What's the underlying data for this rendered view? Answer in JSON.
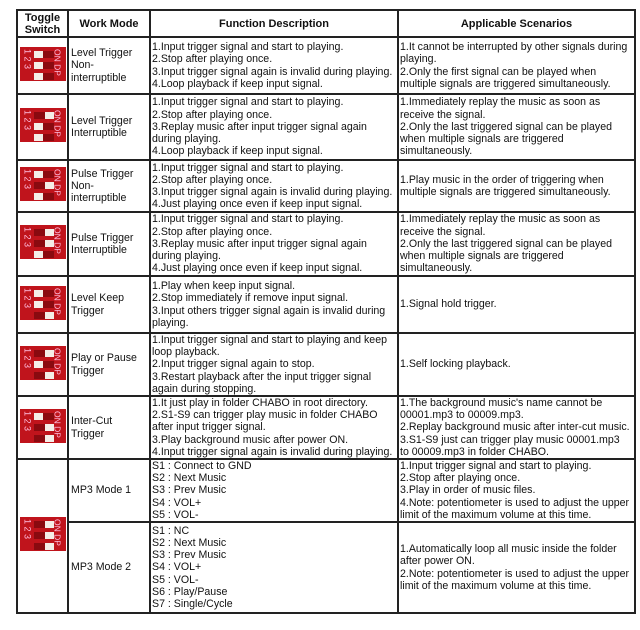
{
  "headers": [
    "Toggle Switch",
    "Work Mode",
    "Function Description",
    "Applicable Scenarios"
  ],
  "dip": {
    "numbers": "1 2 3",
    "label": "ON DP"
  },
  "rows": [
    {
      "switch": [
        0,
        0,
        0
      ],
      "mode": "Level Trigger Non-interruptible",
      "func": [
        "1.Input trigger signal and start to playing.",
        "2.Stop after playing once.",
        "3.Input trigger signal again is invalid during playing.",
        "4.Loop playback if keep input signal."
      ],
      "scen": [
        "1.It cannot be interrupted by other signals during",
        "playing.",
        "2.Only the first signal can be played when",
        "multiple signals are triggered simultaneously."
      ]
    },
    {
      "switch": [
        1,
        0,
        0
      ],
      "mode": "Level Trigger Interruptible",
      "func": [
        "1.Input trigger signal and start to playing.",
        "2.Stop after playing once.",
        "3.Replay music after input trigger signal again",
        "during playing.",
        "4.Loop playback if keep input signal."
      ],
      "scen": [
        "1.Immediately replay the music as soon as",
        "receive the signal.",
        "2.Only the last triggered signal can be played",
        "when multiple signals are triggered",
        "simultaneously."
      ]
    },
    {
      "switch": [
        0,
        1,
        0
      ],
      "mode": "Pulse Trigger Non-interruptible",
      "func": [
        "1.Input trigger signal and start to playing.",
        "2.Stop after playing once.",
        "3.Input trigger signal again is invalid during playing.",
        "4.Just playing once even if keep input signal."
      ],
      "scen": [
        "1.Play music in the order of triggering when",
        "multiple signals are triggered simultaneously."
      ]
    },
    {
      "switch": [
        1,
        1,
        0
      ],
      "mode": "Pulse Trigger Interruptible",
      "func": [
        "1.Input trigger signal and start to playing.",
        "2.Stop after playing once.",
        "3.Replay music after input trigger signal again",
        "during playing.",
        "4.Just playing once even if keep input signal."
      ],
      "scen": [
        "1.Immediately replay the music as soon as",
        "receive the signal.",
        "2.Only the last triggered signal can be played",
        "when multiple signals are triggered",
        "simultaneously."
      ]
    },
    {
      "switch": [
        0,
        0,
        1
      ],
      "mode": "Level Keep Trigger",
      "func": [
        "1.Play when keep input signal.",
        "2.Stop immediately if remove input signal.",
        "3.Input others trigger signal again is invalid during",
        "playing."
      ],
      "scen": [
        "1.Signal hold trigger."
      ]
    },
    {
      "switch": [
        1,
        0,
        1
      ],
      "mode": "Play or Pause Trigger",
      "func": [
        "1.Input trigger signal and start to playing and keep",
        "loop playback.",
        "2.Input trigger signal again to stop.",
        "3.Restart playback after the input trigger signal",
        "again during stopping."
      ],
      "scen": [
        "1.Self locking playback."
      ]
    },
    {
      "switch": [
        0,
        1,
        1
      ],
      "mode": "Inter-Cut Trigger",
      "func": [
        "1.It just play in folder CHABO in root directory.",
        "2.S1-S9 can trigger play music in folder CHABO",
        "after input trigger signal.",
        "3.Play background music after power ON.",
        "4.Input trigger signal again is invalid during playing."
      ],
      "scen": [
        "1.The background music's name cannot be",
        "00001.mp3 to 00009.mp3.",
        "2.Replay background music after inter-cut music.",
        "3.S1-S9 just can trigger play music 00001.mp3",
        "to 00009.mp3 in folder CHABO."
      ]
    },
    {
      "switch": [
        1,
        1,
        1
      ],
      "mode": "MP3 Mode 1",
      "func": [
        "S1 : Connect to GND",
        "S2 : Next Music",
        "S3 : Prev Music",
        "S4 : VOL+",
        "S5 : VOL-"
      ],
      "scen": [
        "1.Input trigger signal and start to playing.",
        "2.Stop after playing once.",
        "3.Play in order of music files.",
        "4.Note: potentiometer is used to adjust the upper",
        "limit of the maximum volume at this time."
      ]
    },
    {
      "mode": "MP3 Mode 2",
      "func": [
        "S1 : NC",
        "S2 : Next Music",
        "S3 : Prev Music",
        "S4 : VOL+",
        "S5 : VOL-",
        "S6 : Play/Pause",
        "S7 : Single/Cycle"
      ],
      "scen": [
        "1.Automatically loop all music inside the folder",
        "after power ON.",
        "2.Note: potentiometer is used to adjust the upper",
        "limit of the maximum volume at this time."
      ]
    }
  ]
}
